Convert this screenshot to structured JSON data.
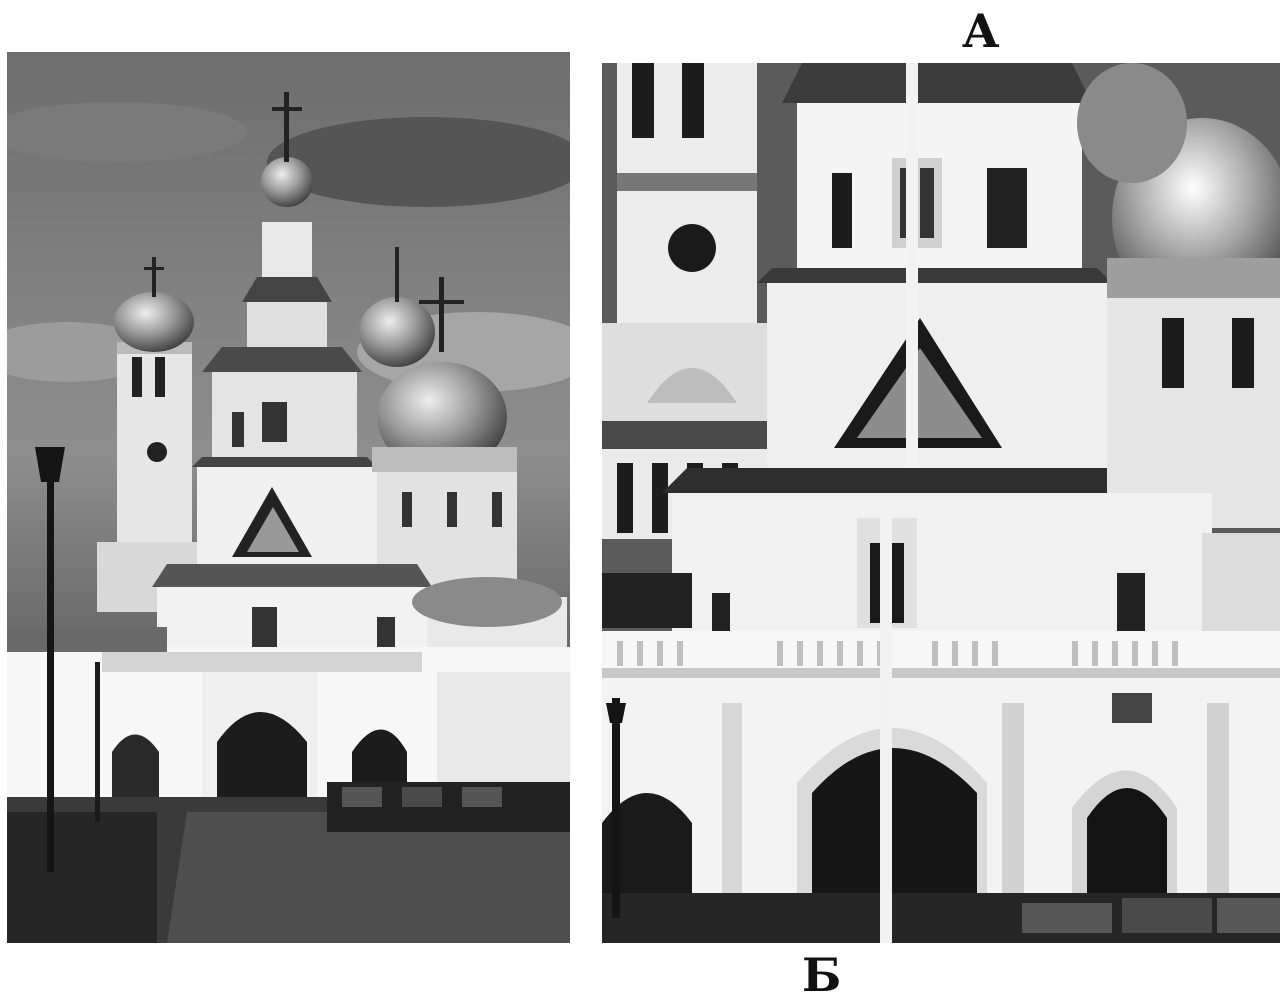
{
  "figure": {
    "left_panel": {
      "kind": "photograph",
      "subject": "church"
    },
    "right_panel": {
      "kind": "photograph-detail",
      "subject": "church"
    },
    "markers": {
      "top": "А",
      "bottom": "Б"
    }
  }
}
